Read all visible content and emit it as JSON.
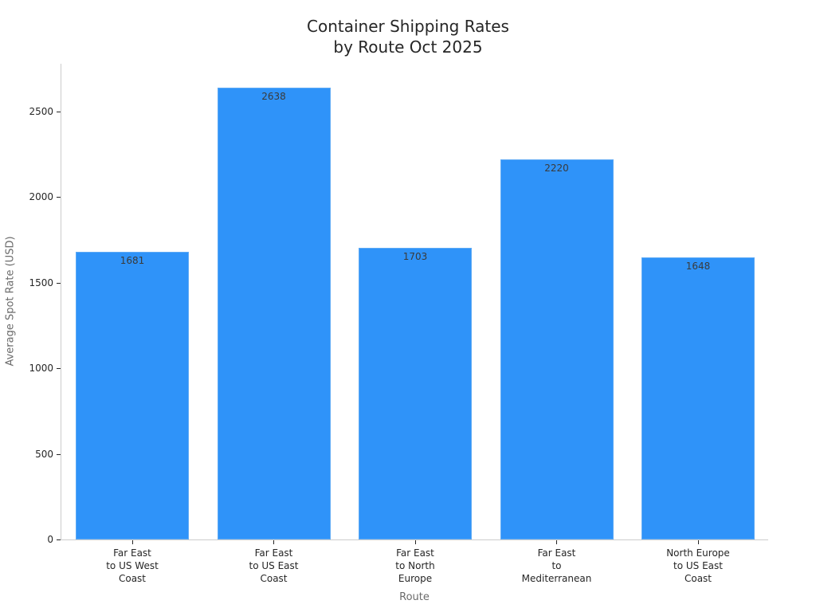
{
  "chart_data": {
    "type": "bar",
    "title": "Container Shipping Rates\nby Route Oct 2025",
    "title_lines": [
      "Container Shipping Rates",
      "by Route Oct 2025"
    ],
    "xlabel": "Route",
    "ylabel": "Average Spot Rate (USD)",
    "categories": [
      "Far East to US West Coast",
      "Far East to US East Coast",
      "Far East to North Europe",
      "Far East to Mediterranean",
      "North Europe to US East Coast"
    ],
    "category_labels_wrapped": [
      "Far East\nto US West\nCoast",
      "Far East\nto US East\nCoast",
      "Far East\nto North\nEurope",
      "Far East\nto\nMediterranean",
      "North Europe\nto US East\nCoast"
    ],
    "values": [
      1681,
      2638,
      1703,
      2220,
      1648
    ],
    "value_labels": [
      "1681",
      "2638",
      "1703",
      "2220",
      "1648"
    ],
    "ylim": [
      0,
      2780
    ],
    "yticks": [
      0,
      500,
      1000,
      1500,
      2000,
      2500
    ],
    "ytick_labels": [
      "0",
      "500",
      "1000",
      "1500",
      "2000",
      "2500"
    ],
    "grid": false,
    "legend": null,
    "bar_color": "#2f93f9"
  }
}
